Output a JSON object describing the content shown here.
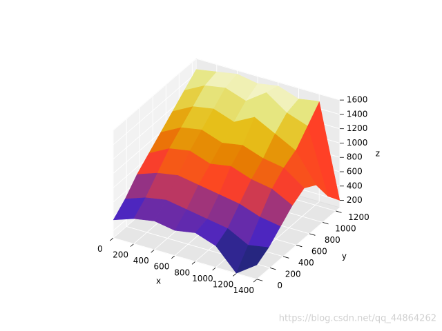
{
  "chart_data": {
    "type": "surface3d",
    "xlabel": "x",
    "ylabel": "y",
    "zlabel": "z",
    "colormap": "CMRmap",
    "x": [
      0,
      200,
      400,
      600,
      800,
      1000,
      1200,
      1400
    ],
    "y": [
      0,
      180,
      360,
      540,
      720,
      900,
      1080,
      1260
    ],
    "z": [
      [
        350,
        450,
        500,
        450,
        500,
        400,
        100,
        300
      ],
      [
        500,
        600,
        650,
        600,
        550,
        500,
        350,
        400
      ],
      [
        700,
        800,
        850,
        800,
        750,
        700,
        600,
        550
      ],
      [
        850,
        1000,
        1050,
        950,
        1000,
        900,
        850,
        700
      ],
      [
        1000,
        1150,
        1200,
        1100,
        1150,
        1050,
        1000,
        800
      ],
      [
        1150,
        1300,
        1350,
        1250,
        1400,
        1250,
        1100,
        700
      ],
      [
        1300,
        1450,
        1500,
        1400,
        1600,
        1400,
        1300,
        400
      ],
      [
        1450,
        1500,
        1550,
        1500,
        1550,
        1450,
        1500,
        200
      ]
    ],
    "xlim": [
      0,
      1400
    ],
    "ylim": [
      0,
      1260
    ],
    "zlim": [
      100,
      1600
    ],
    "xticks": [
      0,
      200,
      400,
      600,
      800,
      1000,
      1200,
      1400
    ],
    "yticks": [
      0,
      200,
      400,
      600,
      800,
      1000,
      1200
    ],
    "zticks": [
      200,
      400,
      600,
      800,
      1000,
      1200,
      1400,
      1600
    ],
    "grid": true,
    "watermark": "https://blog.csdn.net/qq_44864262"
  }
}
